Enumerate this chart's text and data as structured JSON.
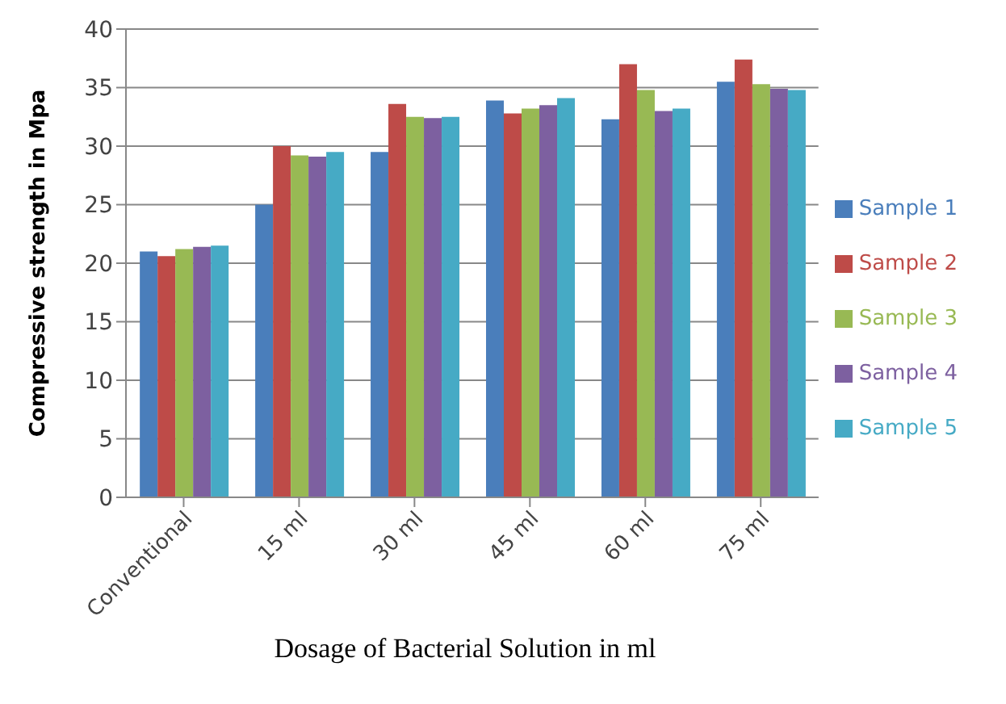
{
  "chart_data": {
    "type": "bar",
    "xlabel": "Dosage of Bacterial Solution in ml",
    "ylabel": "Compressive strength in Mpa",
    "categories": [
      "Conventional",
      "15 ml",
      "30 ml",
      "45 ml",
      "60 ml",
      "75 ml"
    ],
    "series": [
      {
        "name": "Sample 1",
        "color": "#4a7ebb",
        "values": [
          21,
          25,
          29.5,
          33.9,
          32.3,
          35.5
        ]
      },
      {
        "name": "Sample 2",
        "color": "#be4b48",
        "values": [
          20.6,
          30,
          33.6,
          32.8,
          37,
          37.4
        ]
      },
      {
        "name": "Sample 3",
        "color": "#98b954",
        "values": [
          21.2,
          29.2,
          32.5,
          33.2,
          34.8,
          35.3
        ]
      },
      {
        "name": "Sample 4",
        "color": "#7d60a0",
        "values": [
          21.4,
          29.1,
          32.4,
          33.5,
          33,
          34.9
        ]
      },
      {
        "name": "Sample 5",
        "color": "#46aac5",
        "values": [
          21.5,
          29.5,
          32.5,
          34.1,
          33.2,
          34.8
        ]
      }
    ],
    "ylim": [
      0,
      40
    ],
    "yticks": [
      0,
      5,
      10,
      15,
      20,
      25,
      30,
      35,
      40
    ],
    "grid": "y",
    "legend": "right"
  }
}
